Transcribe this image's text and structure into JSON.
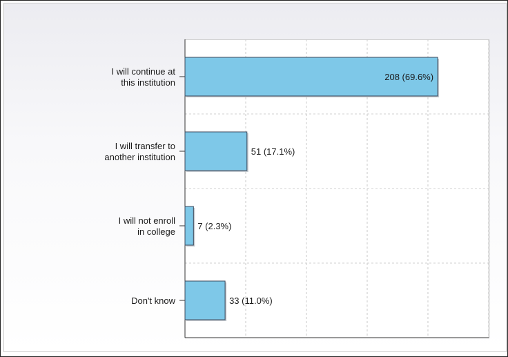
{
  "chart_data": {
    "type": "bar",
    "orientation": "horizontal",
    "categories": [
      [
        "I will continue at",
        "this institution"
      ],
      [
        "I will transfer to",
        "another institution"
      ],
      [
        "I will not enroll",
        "in college"
      ],
      [
        "Don't know"
      ]
    ],
    "values": [
      208,
      51,
      7,
      33
    ],
    "value_labels": [
      "208 (69.6%)",
      "51 (17.1%)",
      "7 (2.3%)",
      "33 (11.0%)"
    ],
    "xlim": [
      0,
      250
    ],
    "gridlines_x": [
      50,
      100,
      150,
      200,
      250
    ],
    "grid": true,
    "bar_color": "#7ec8e8",
    "bar_border_color": "#3d4a5c",
    "title": "",
    "xlabel": "",
    "ylabel": ""
  }
}
